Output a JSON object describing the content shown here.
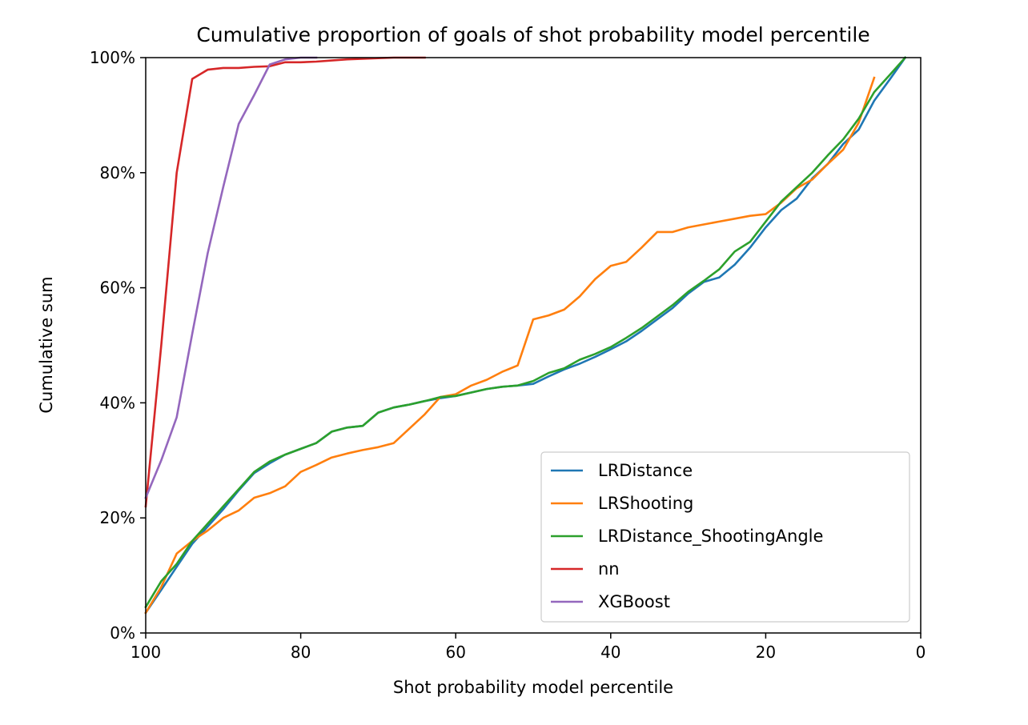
{
  "chart_data": {
    "type": "line",
    "title": "Cumulative proportion of goals of shot probability model percentile",
    "xlabel": "Shot probability model percentile",
    "ylabel": "Cumulative sum",
    "xlim": [
      100,
      0
    ],
    "ylim": [
      0,
      1
    ],
    "x_inverted": true,
    "grid": false,
    "legend_position": "lower-right",
    "x_ticks": [
      {
        "value": 100,
        "label": "100"
      },
      {
        "value": 80,
        "label": "80"
      },
      {
        "value": 60,
        "label": "60"
      },
      {
        "value": 40,
        "label": "40"
      },
      {
        "value": 20,
        "label": "20"
      },
      {
        "value": 0,
        "label": "0"
      }
    ],
    "y_ticks": [
      {
        "value": 0.0,
        "label": "0%"
      },
      {
        "value": 0.2,
        "label": "20%"
      },
      {
        "value": 0.4,
        "label": "40%"
      },
      {
        "value": 0.6,
        "label": "60%"
      },
      {
        "value": 0.8,
        "label": "80%"
      },
      {
        "value": 1.0,
        "label": "100%"
      }
    ],
    "series": [
      {
        "name": "LRDistance",
        "color": "#1f77b4",
        "points": [
          [
            100,
            0.035
          ],
          [
            98,
            0.075
          ],
          [
            96,
            0.115
          ],
          [
            94,
            0.155
          ],
          [
            92,
            0.185
          ],
          [
            90,
            0.215
          ],
          [
            88,
            0.248
          ],
          [
            86,
            0.278
          ],
          [
            84,
            0.295
          ],
          [
            82,
            0.31
          ],
          [
            80,
            0.32
          ],
          [
            78,
            0.33
          ],
          [
            76,
            0.35
          ],
          [
            74,
            0.357
          ],
          [
            72,
            0.36
          ],
          [
            70,
            0.383
          ],
          [
            68,
            0.392
          ],
          [
            66,
            0.397
          ],
          [
            64,
            0.403
          ],
          [
            62,
            0.408
          ],
          [
            60,
            0.412
          ],
          [
            58,
            0.418
          ],
          [
            56,
            0.424
          ],
          [
            54,
            0.428
          ],
          [
            52,
            0.43
          ],
          [
            50,
            0.433
          ],
          [
            48,
            0.446
          ],
          [
            46,
            0.458
          ],
          [
            44,
            0.468
          ],
          [
            42,
            0.48
          ],
          [
            40,
            0.493
          ],
          [
            38,
            0.507
          ],
          [
            36,
            0.525
          ],
          [
            34,
            0.545
          ],
          [
            32,
            0.565
          ],
          [
            30,
            0.59
          ],
          [
            28,
            0.61
          ],
          [
            26,
            0.618
          ],
          [
            24,
            0.64
          ],
          [
            22,
            0.67
          ],
          [
            20,
            0.705
          ],
          [
            18,
            0.735
          ],
          [
            16,
            0.755
          ],
          [
            14,
            0.79
          ],
          [
            12,
            0.815
          ],
          [
            10,
            0.85
          ],
          [
            8,
            0.875
          ],
          [
            6,
            0.925
          ],
          [
            4,
            0.962
          ],
          [
            2,
            1.0
          ]
        ]
      },
      {
        "name": "LRShooting",
        "color": "#ff7f0e",
        "points": [
          [
            100,
            0.035
          ],
          [
            98,
            0.08
          ],
          [
            96,
            0.138
          ],
          [
            94,
            0.16
          ],
          [
            92,
            0.178
          ],
          [
            90,
            0.2
          ],
          [
            88,
            0.213
          ],
          [
            86,
            0.235
          ],
          [
            84,
            0.243
          ],
          [
            82,
            0.255
          ],
          [
            80,
            0.28
          ],
          [
            78,
            0.292
          ],
          [
            76,
            0.305
          ],
          [
            74,
            0.312
          ],
          [
            72,
            0.318
          ],
          [
            70,
            0.323
          ],
          [
            68,
            0.33
          ],
          [
            66,
            0.355
          ],
          [
            64,
            0.38
          ],
          [
            62,
            0.41
          ],
          [
            60,
            0.415
          ],
          [
            58,
            0.43
          ],
          [
            56,
            0.44
          ],
          [
            54,
            0.454
          ],
          [
            52,
            0.465
          ],
          [
            50,
            0.545
          ],
          [
            48,
            0.552
          ],
          [
            46,
            0.562
          ],
          [
            44,
            0.585
          ],
          [
            42,
            0.615
          ],
          [
            40,
            0.638
          ],
          [
            38,
            0.645
          ],
          [
            36,
            0.67
          ],
          [
            34,
            0.697
          ],
          [
            32,
            0.697
          ],
          [
            30,
            0.705
          ],
          [
            28,
            0.71
          ],
          [
            26,
            0.715
          ],
          [
            24,
            0.72
          ],
          [
            22,
            0.725
          ],
          [
            20,
            0.728
          ],
          [
            18,
            0.748
          ],
          [
            16,
            0.773
          ],
          [
            14,
            0.788
          ],
          [
            12,
            0.815
          ],
          [
            10,
            0.84
          ],
          [
            8,
            0.887
          ],
          [
            6,
            0.965
          ]
        ]
      },
      {
        "name": "LRDistance_ShootingAngle",
        "color": "#2ca02c",
        "points": [
          [
            100,
            0.045
          ],
          [
            98,
            0.09
          ],
          [
            96,
            0.12
          ],
          [
            94,
            0.16
          ],
          [
            92,
            0.19
          ],
          [
            90,
            0.22
          ],
          [
            88,
            0.25
          ],
          [
            86,
            0.28
          ],
          [
            84,
            0.298
          ],
          [
            82,
            0.31
          ],
          [
            80,
            0.32
          ],
          [
            78,
            0.33
          ],
          [
            76,
            0.35
          ],
          [
            74,
            0.357
          ],
          [
            72,
            0.36
          ],
          [
            70,
            0.383
          ],
          [
            68,
            0.392
          ],
          [
            66,
            0.397
          ],
          [
            64,
            0.403
          ],
          [
            62,
            0.41
          ],
          [
            60,
            0.412
          ],
          [
            58,
            0.418
          ],
          [
            56,
            0.424
          ],
          [
            54,
            0.428
          ],
          [
            52,
            0.43
          ],
          [
            50,
            0.438
          ],
          [
            48,
            0.452
          ],
          [
            46,
            0.46
          ],
          [
            44,
            0.475
          ],
          [
            42,
            0.485
          ],
          [
            40,
            0.497
          ],
          [
            38,
            0.513
          ],
          [
            36,
            0.53
          ],
          [
            34,
            0.55
          ],
          [
            32,
            0.57
          ],
          [
            30,
            0.593
          ],
          [
            28,
            0.612
          ],
          [
            26,
            0.632
          ],
          [
            24,
            0.663
          ],
          [
            22,
            0.68
          ],
          [
            20,
            0.715
          ],
          [
            18,
            0.75
          ],
          [
            16,
            0.775
          ],
          [
            14,
            0.8
          ],
          [
            12,
            0.83
          ],
          [
            10,
            0.858
          ],
          [
            8,
            0.894
          ],
          [
            6,
            0.94
          ],
          [
            4,
            0.97
          ],
          [
            2,
            1.0
          ]
        ]
      },
      {
        "name": "nn",
        "color": "#d62728",
        "points": [
          [
            100,
            0.22
          ],
          [
            98,
            0.5
          ],
          [
            96,
            0.8
          ],
          [
            94,
            0.963
          ],
          [
            92,
            0.979
          ],
          [
            90,
            0.982
          ],
          [
            88,
            0.982
          ],
          [
            86,
            0.984
          ],
          [
            84,
            0.985
          ],
          [
            82,
            0.992
          ],
          [
            80,
            0.992
          ],
          [
            78,
            0.993
          ],
          [
            76,
            0.995
          ],
          [
            74,
            0.997
          ],
          [
            72,
            0.998
          ],
          [
            70,
            0.999
          ],
          [
            68,
            1.0
          ],
          [
            66,
            1.0
          ],
          [
            64,
            1.0
          ]
        ]
      },
      {
        "name": "XGBoost",
        "color": "#9467bd",
        "points": [
          [
            100,
            0.235
          ],
          [
            98,
            0.3
          ],
          [
            96,
            0.375
          ],
          [
            94,
            0.52
          ],
          [
            92,
            0.66
          ],
          [
            90,
            0.775
          ],
          [
            88,
            0.885
          ],
          [
            86,
            0.935
          ],
          [
            84,
            0.988
          ],
          [
            82,
            0.997
          ],
          [
            80,
            1.0
          ],
          [
            78,
            1.0
          ]
        ]
      }
    ]
  }
}
